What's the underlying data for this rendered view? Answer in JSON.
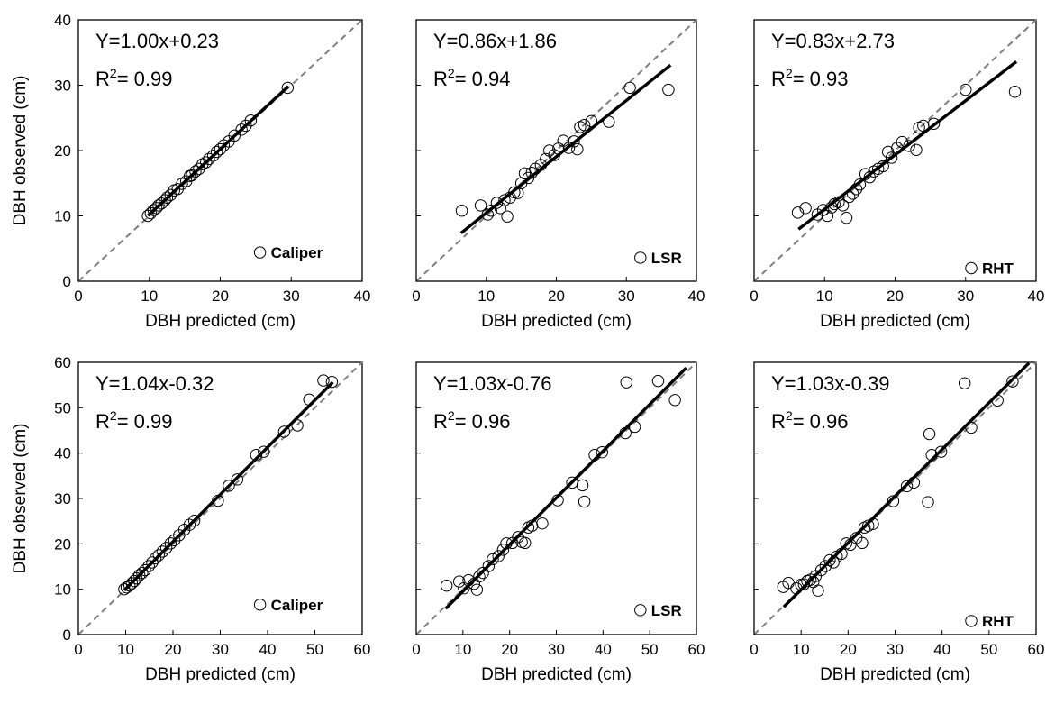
{
  "chart_data": [
    {
      "type": "scatter",
      "panel": "row1-col1",
      "equation": "Y=1.00x+0.23",
      "r2_prefix": "R",
      "r2_sup": "2",
      "r2_value": "= 0.99",
      "legend": "Caliper",
      "xlabel": "DBH predicted (cm)",
      "ylabel": "DBH observed (cm)",
      "xlim": [
        0,
        40
      ],
      "ylim": [
        0,
        40
      ],
      "xticks": [
        "0",
        "10",
        "20",
        "30",
        "40"
      ],
      "yticks": [
        "0",
        "10",
        "20",
        "30",
        "40"
      ],
      "fit": {
        "slope": 1.0,
        "intercept": 0.23,
        "x_range": [
          9.8,
          29.6
        ]
      },
      "points": {
        "x": [
          9.8,
          10.2,
          10.6,
          11,
          11.3,
          11.7,
          12.2,
          12.5,
          13,
          13.5,
          14,
          14.6,
          15.2,
          15.7,
          16,
          16.5,
          17,
          17.5,
          18,
          18.4,
          19,
          19.5,
          20,
          20.5,
          21.2,
          22,
          23,
          23.6,
          24.3,
          29.5
        ],
        "y": [
          10,
          10.4,
          10.9,
          11.2,
          11.6,
          11.9,
          12.4,
          12.8,
          13.2,
          13.9,
          14.1,
          14.9,
          15.3,
          16.1,
          16.2,
          16.8,
          17.2,
          17.9,
          18.2,
          18.7,
          19.2,
          19.8,
          20.2,
          20.8,
          21.4,
          22.3,
          23.2,
          23.8,
          24.6,
          29.6
        ]
      }
    },
    {
      "type": "scatter",
      "panel": "row1-col2",
      "equation": "Y=0.86x+1.86",
      "r2_prefix": "R",
      "r2_sup": "2",
      "r2_value": "= 0.94",
      "legend": "LSR",
      "xlabel": "DBH predicted (cm)",
      "ylabel": "",
      "xlim": [
        0,
        40
      ],
      "ylim": [
        0,
        40
      ],
      "xticks": [
        "0",
        "10",
        "20",
        "30",
        "40"
      ],
      "yticks": [],
      "fit": {
        "slope": 0.86,
        "intercept": 1.86,
        "x_range": [
          6.4,
          36.3
        ]
      },
      "points": {
        "x": [
          6.5,
          9.2,
          10.2,
          10.7,
          11.5,
          12,
          12.6,
          13,
          13.4,
          14,
          14.5,
          15,
          15.5,
          16,
          16.5,
          17,
          17.8,
          18.5,
          19,
          19.7,
          20.3,
          21,
          21.8,
          22.5,
          23,
          23.4,
          24,
          25,
          27.5,
          30.5,
          36
        ],
        "y": [
          10.8,
          11.6,
          10.2,
          10.8,
          12,
          11.2,
          12.4,
          9.9,
          12.8,
          13.6,
          13.5,
          15,
          16.5,
          15.8,
          16.6,
          17.2,
          17.8,
          18.7,
          20,
          19.3,
          20.3,
          21.5,
          20.4,
          21.4,
          20.2,
          23.6,
          23.9,
          24.5,
          24.4,
          29.6,
          29.3
        ]
      }
    },
    {
      "type": "scatter",
      "panel": "row1-col3",
      "equation": "Y=0.83x+2.73",
      "r2_prefix": "R",
      "r2_sup": "2",
      "r2_value": "= 0.93",
      "legend": "RHT",
      "xlabel": "DBH predicted (cm)",
      "ylabel": "",
      "xlim": [
        0,
        40
      ],
      "ylim": [
        0,
        40
      ],
      "xticks": [
        "0",
        "10",
        "20",
        "30",
        "40"
      ],
      "yticks": [],
      "fit": {
        "slope": 0.83,
        "intercept": 2.73,
        "x_range": [
          6.3,
          37.2
        ]
      },
      "points": {
        "x": [
          6.2,
          7.3,
          9,
          9.8,
          10.4,
          11,
          11.4,
          12,
          12.6,
          13.1,
          13.5,
          14,
          14.5,
          15,
          15.8,
          16.4,
          17,
          17.6,
          18.3,
          19,
          19.5,
          20.3,
          21,
          22,
          23,
          23.4,
          24,
          25.5,
          30,
          37
        ],
        "y": [
          10.5,
          11.2,
          10.2,
          10.9,
          10,
          11.3,
          11.8,
          12.1,
          11.6,
          9.7,
          12.9,
          13.4,
          14.1,
          14.8,
          16.4,
          15.9,
          16.8,
          17.2,
          17.6,
          19.8,
          18.9,
          20.4,
          21.3,
          20.7,
          20.1,
          23.5,
          23.8,
          24.1,
          29.3,
          29
        ]
      }
    },
    {
      "type": "scatter",
      "panel": "row2-col1",
      "equation": "Y=1.04x-0.32",
      "r2_prefix": "R",
      "r2_sup": "2",
      "r2_value": "= 0.99",
      "legend": "Caliper",
      "xlabel": "DBH predicted (cm)",
      "ylabel": "DBH observed (cm)",
      "xlim": [
        0,
        60
      ],
      "ylim": [
        0,
        60
      ],
      "xticks": [
        "0",
        "10",
        "20",
        "30",
        "40",
        "50",
        "60"
      ],
      "yticks": [
        "0",
        "10",
        "20",
        "30",
        "40",
        "50",
        "60"
      ],
      "fit": {
        "slope": 1.04,
        "intercept": -0.32,
        "x_range": [
          9.7,
          53.8
        ]
      },
      "points": {
        "x": [
          9.7,
          10.2,
          10.8,
          11.3,
          11.8,
          12.3,
          12.9,
          13.5,
          14.1,
          14.9,
          15.6,
          16.3,
          17,
          17.8,
          18.6,
          19.5,
          20.3,
          21.3,
          22.4,
          23.5,
          24.5,
          29.5,
          31.8,
          33.6,
          37.6,
          39.2,
          43.5,
          46.3,
          48.8,
          51.8,
          53.6
        ],
        "y": [
          10,
          10.4,
          10.8,
          11.3,
          11.8,
          12.4,
          13.1,
          13.6,
          14.2,
          15.1,
          15.9,
          16.8,
          17.5,
          18.3,
          19.1,
          20.1,
          20.8,
          21.9,
          23.1,
          24.2,
          25.1,
          29.5,
          32.8,
          34.2,
          39.6,
          40.3,
          44.7,
          46.1,
          51.8,
          56,
          55.7
        ]
      }
    },
    {
      "type": "scatter",
      "panel": "row2-col2",
      "equation": "Y=1.03x-0.76",
      "r2_prefix": "R",
      "r2_sup": "2",
      "r2_value": "= 0.96",
      "legend": "LSR",
      "xlabel": "DBH predicted (cm)",
      "ylabel": "",
      "xlim": [
        0,
        60
      ],
      "ylim": [
        0,
        60
      ],
      "xticks": [
        "0",
        "10",
        "20",
        "30",
        "40",
        "50",
        "60"
      ],
      "yticks": [],
      "fit": {
        "slope": 1.03,
        "intercept": -0.76,
        "x_range": [
          6.3,
          57.8
        ]
      },
      "points": {
        "x": [
          6.5,
          9.2,
          10.2,
          11.2,
          12.4,
          13,
          13.5,
          14.3,
          15.5,
          16.4,
          17.6,
          18.6,
          19.3,
          20.6,
          21.8,
          22.6,
          23.3,
          24,
          24.8,
          27,
          30.3,
          33.4,
          35.6,
          36,
          38.2,
          39.8,
          44.8,
          45,
          46.8,
          51.8,
          55.4
        ],
        "y": [
          10.8,
          11.7,
          10.2,
          12,
          11.2,
          9.9,
          12.8,
          13.6,
          15.1,
          16.6,
          17.3,
          18.7,
          20.1,
          20.2,
          21.5,
          20.4,
          20.2,
          23.6,
          24,
          24.5,
          29.6,
          33.5,
          32.9,
          29.3,
          39.6,
          40.2,
          44.4,
          55.6,
          45.8,
          55.9,
          51.7
        ]
      }
    },
    {
      "type": "scatter",
      "panel": "row2-col3",
      "equation": "Y=1.03x-0.39",
      "r2_prefix": "R",
      "r2_sup": "2",
      "r2_value": "= 0.96",
      "legend": "RHT",
      "xlabel": "DBH predicted (cm)",
      "ylabel": "",
      "xlim": [
        0,
        60
      ],
      "ylim": [
        0,
        60
      ],
      "xticks": [
        "0",
        "10",
        "20",
        "30",
        "40",
        "50",
        "60"
      ],
      "yticks": [],
      "fit": {
        "slope": 1.03,
        "intercept": -0.39,
        "x_range": [
          6.3,
          58.5
        ]
      },
      "points": {
        "x": [
          6.2,
          7.3,
          9,
          10,
          10.6,
          11.3,
          12,
          12.6,
          13.1,
          13.6,
          14.3,
          15.2,
          16.1,
          16.9,
          17.6,
          18.6,
          19.6,
          20.5,
          21.8,
          23,
          23.5,
          24.3,
          25.3,
          29.6,
          32.5,
          34,
          37,
          37.3,
          37.8,
          39.8,
          44.8,
          46.2,
          51.8,
          55
        ],
        "y": [
          10.5,
          11.4,
          10.2,
          11,
          11.1,
          11.8,
          12.1,
          11.6,
          12.9,
          9.7,
          14.2,
          15.1,
          16.4,
          15.9,
          17.2,
          17.8,
          20.1,
          19.8,
          21.3,
          20.2,
          23.6,
          24,
          24.4,
          29.4,
          32.7,
          33.5,
          29.2,
          44.2,
          39.6,
          40.3,
          55.4,
          45.6,
          51.6,
          55.8
        ]
      }
    }
  ]
}
